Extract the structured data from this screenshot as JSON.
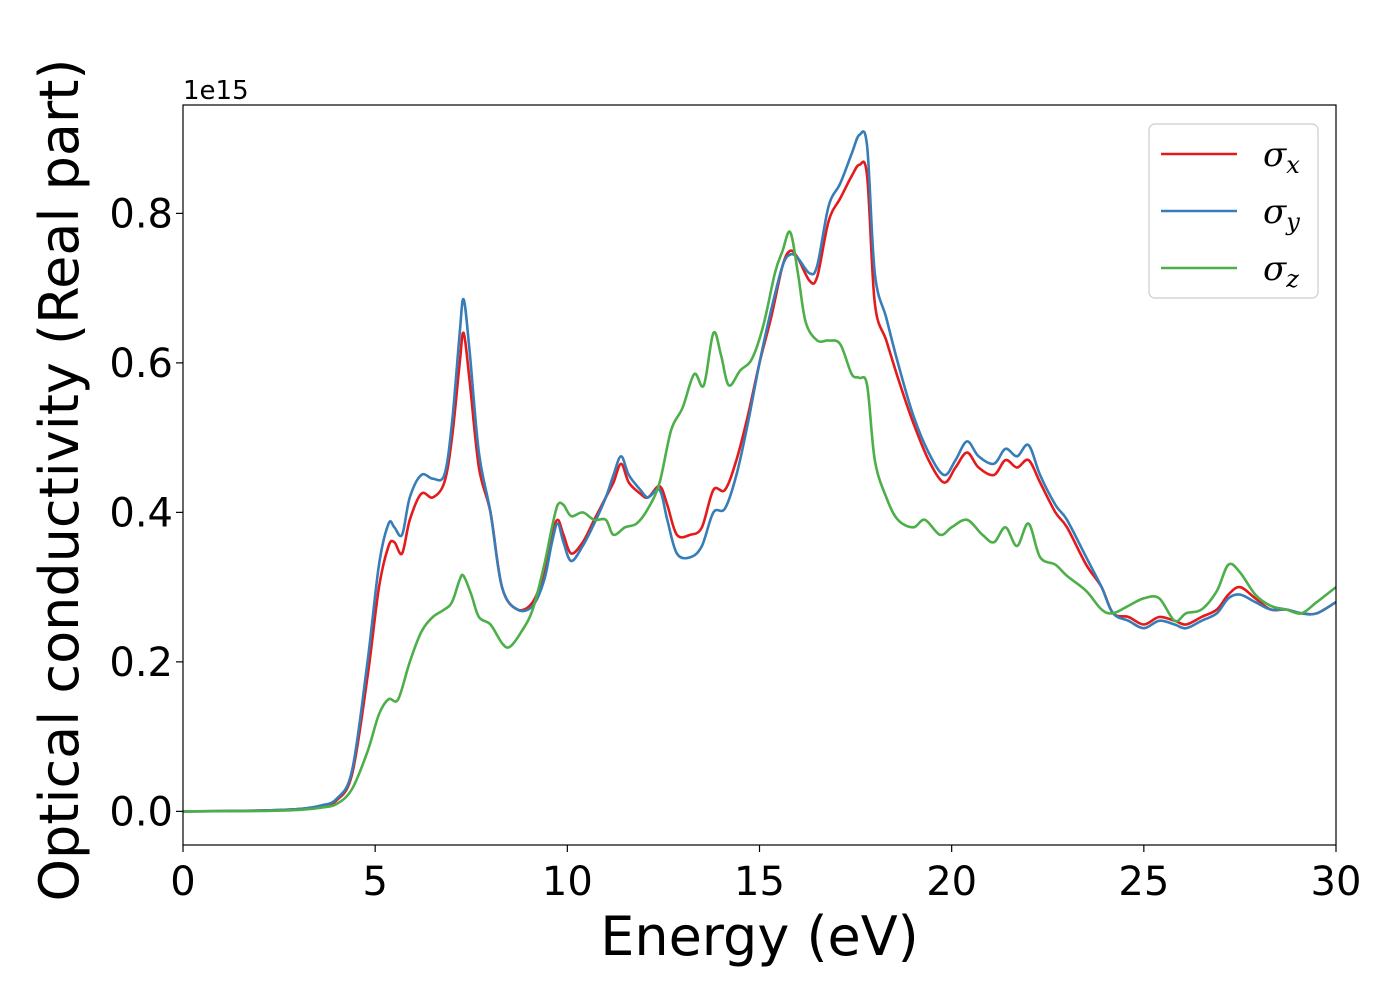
{
  "chart_data": {
    "type": "line",
    "xlabel": "Energy (eV)",
    "ylabel": "Optical conductivity (Real part)",
    "y_offset_label": "1e15",
    "xlim": [
      0,
      30
    ],
    "ylim": [
      -0.045,
      0.945
    ],
    "x_ticks": [
      0,
      5,
      10,
      15,
      20,
      25,
      30
    ],
    "x_tick_labels": [
      "0",
      "5",
      "10",
      "15",
      "20",
      "25",
      "30"
    ],
    "y_ticks": [
      0.0,
      0.2,
      0.4,
      0.6,
      0.8
    ],
    "y_tick_labels": [
      "0.0",
      "0.2",
      "0.4",
      "0.6",
      "0.8"
    ],
    "grid": false,
    "legend_position": "top-right",
    "series": [
      {
        "name": "σx",
        "symbol": "σ",
        "subscript": "x",
        "color": "#e41a1c",
        "points": [
          [
            0,
            0
          ],
          [
            2,
            0.001
          ],
          [
            3,
            0.003
          ],
          [
            3.6,
            0.007
          ],
          [
            4,
            0.015
          ],
          [
            4.4,
            0.05
          ],
          [
            4.8,
            0.18
          ],
          [
            5.1,
            0.3
          ],
          [
            5.35,
            0.355
          ],
          [
            5.5,
            0.36
          ],
          [
            5.7,
            0.345
          ],
          [
            5.9,
            0.39
          ],
          [
            6.2,
            0.425
          ],
          [
            6.5,
            0.42
          ],
          [
            6.8,
            0.44
          ],
          [
            7.0,
            0.5
          ],
          [
            7.2,
            0.6
          ],
          [
            7.3,
            0.64
          ],
          [
            7.45,
            0.58
          ],
          [
            7.7,
            0.46
          ],
          [
            8.0,
            0.4
          ],
          [
            8.3,
            0.3
          ],
          [
            8.7,
            0.27
          ],
          [
            9.1,
            0.28
          ],
          [
            9.4,
            0.32
          ],
          [
            9.6,
            0.37
          ],
          [
            9.75,
            0.39
          ],
          [
            9.9,
            0.37
          ],
          [
            10.1,
            0.345
          ],
          [
            10.4,
            0.36
          ],
          [
            10.7,
            0.39
          ],
          [
            11.0,
            0.42
          ],
          [
            11.2,
            0.44
          ],
          [
            11.4,
            0.465
          ],
          [
            11.6,
            0.44
          ],
          [
            11.9,
            0.425
          ],
          [
            12.1,
            0.42
          ],
          [
            12.4,
            0.435
          ],
          [
            12.6,
            0.41
          ],
          [
            12.85,
            0.37
          ],
          [
            13.2,
            0.37
          ],
          [
            13.5,
            0.38
          ],
          [
            13.8,
            0.43
          ],
          [
            14.1,
            0.43
          ],
          [
            14.4,
            0.47
          ],
          [
            14.7,
            0.53
          ],
          [
            15.0,
            0.6
          ],
          [
            15.3,
            0.66
          ],
          [
            15.6,
            0.73
          ],
          [
            15.8,
            0.75
          ],
          [
            16.0,
            0.74
          ],
          [
            16.3,
            0.71
          ],
          [
            16.5,
            0.715
          ],
          [
            16.8,
            0.79
          ],
          [
            17.1,
            0.82
          ],
          [
            17.4,
            0.85
          ],
          [
            17.6,
            0.865
          ],
          [
            17.8,
            0.85
          ],
          [
            18.0,
            0.68
          ],
          [
            18.3,
            0.63
          ],
          [
            18.6,
            0.58
          ],
          [
            19.0,
            0.52
          ],
          [
            19.4,
            0.47
          ],
          [
            19.8,
            0.44
          ],
          [
            20.1,
            0.46
          ],
          [
            20.4,
            0.48
          ],
          [
            20.7,
            0.46
          ],
          [
            21.1,
            0.45
          ],
          [
            21.4,
            0.47
          ],
          [
            21.7,
            0.46
          ],
          [
            22.0,
            0.47
          ],
          [
            22.3,
            0.44
          ],
          [
            22.7,
            0.4
          ],
          [
            23.0,
            0.38
          ],
          [
            23.5,
            0.33
          ],
          [
            23.9,
            0.3
          ],
          [
            24.2,
            0.265
          ],
          [
            24.6,
            0.26
          ],
          [
            25.0,
            0.25
          ],
          [
            25.4,
            0.26
          ],
          [
            25.8,
            0.255
          ],
          [
            26.1,
            0.25
          ],
          [
            26.5,
            0.26
          ],
          [
            26.9,
            0.27
          ],
          [
            27.2,
            0.29
          ],
          [
            27.5,
            0.3
          ],
          [
            27.9,
            0.285
          ],
          [
            28.3,
            0.27
          ],
          [
            28.7,
            0.27
          ],
          [
            29.1,
            0.265
          ],
          [
            29.5,
            0.265
          ],
          [
            30.0,
            0.28
          ]
        ]
      },
      {
        "name": "σy",
        "symbol": "σ",
        "subscript": "y",
        "color": "#377eb8",
        "points": [
          [
            0,
            0
          ],
          [
            2,
            0.001
          ],
          [
            3,
            0.003
          ],
          [
            3.6,
            0.008
          ],
          [
            4,
            0.017
          ],
          [
            4.4,
            0.055
          ],
          [
            4.8,
            0.2
          ],
          [
            5.1,
            0.33
          ],
          [
            5.35,
            0.385
          ],
          [
            5.5,
            0.38
          ],
          [
            5.7,
            0.37
          ],
          [
            5.9,
            0.42
          ],
          [
            6.2,
            0.45
          ],
          [
            6.5,
            0.445
          ],
          [
            6.8,
            0.45
          ],
          [
            7.0,
            0.52
          ],
          [
            7.2,
            0.64
          ],
          [
            7.3,
            0.685
          ],
          [
            7.45,
            0.62
          ],
          [
            7.7,
            0.48
          ],
          [
            8.0,
            0.4
          ],
          [
            8.3,
            0.3
          ],
          [
            8.7,
            0.27
          ],
          [
            9.1,
            0.275
          ],
          [
            9.4,
            0.31
          ],
          [
            9.6,
            0.36
          ],
          [
            9.75,
            0.385
          ],
          [
            9.9,
            0.36
          ],
          [
            10.1,
            0.335
          ],
          [
            10.4,
            0.355
          ],
          [
            10.7,
            0.385
          ],
          [
            11.0,
            0.42
          ],
          [
            11.2,
            0.45
          ],
          [
            11.4,
            0.475
          ],
          [
            11.6,
            0.45
          ],
          [
            11.9,
            0.43
          ],
          [
            12.1,
            0.42
          ],
          [
            12.4,
            0.43
          ],
          [
            12.6,
            0.39
          ],
          [
            12.85,
            0.345
          ],
          [
            13.2,
            0.34
          ],
          [
            13.5,
            0.355
          ],
          [
            13.8,
            0.4
          ],
          [
            14.1,
            0.405
          ],
          [
            14.4,
            0.45
          ],
          [
            14.7,
            0.52
          ],
          [
            15.0,
            0.6
          ],
          [
            15.3,
            0.67
          ],
          [
            15.6,
            0.73
          ],
          [
            15.8,
            0.745
          ],
          [
            16.0,
            0.74
          ],
          [
            16.3,
            0.72
          ],
          [
            16.5,
            0.73
          ],
          [
            16.8,
            0.81
          ],
          [
            17.1,
            0.84
          ],
          [
            17.4,
            0.88
          ],
          [
            17.6,
            0.905
          ],
          [
            17.8,
            0.89
          ],
          [
            18.0,
            0.72
          ],
          [
            18.3,
            0.66
          ],
          [
            18.6,
            0.6
          ],
          [
            19.0,
            0.53
          ],
          [
            19.4,
            0.48
          ],
          [
            19.8,
            0.45
          ],
          [
            20.1,
            0.47
          ],
          [
            20.4,
            0.495
          ],
          [
            20.7,
            0.475
          ],
          [
            21.1,
            0.465
          ],
          [
            21.4,
            0.485
          ],
          [
            21.7,
            0.475
          ],
          [
            22.0,
            0.49
          ],
          [
            22.3,
            0.45
          ],
          [
            22.7,
            0.41
          ],
          [
            23.0,
            0.39
          ],
          [
            23.5,
            0.34
          ],
          [
            23.9,
            0.3
          ],
          [
            24.2,
            0.265
          ],
          [
            24.6,
            0.255
          ],
          [
            25.0,
            0.245
          ],
          [
            25.4,
            0.255
          ],
          [
            25.8,
            0.25
          ],
          [
            26.1,
            0.245
          ],
          [
            26.5,
            0.255
          ],
          [
            26.9,
            0.265
          ],
          [
            27.2,
            0.285
          ],
          [
            27.5,
            0.29
          ],
          [
            27.9,
            0.28
          ],
          [
            28.3,
            0.27
          ],
          [
            28.7,
            0.27
          ],
          [
            29.1,
            0.265
          ],
          [
            29.5,
            0.265
          ],
          [
            30.0,
            0.28
          ]
        ]
      },
      {
        "name": "σz",
        "symbol": "σ",
        "subscript": "z",
        "color": "#4daf4a",
        "points": [
          [
            0,
            0
          ],
          [
            2,
            0.0005
          ],
          [
            3,
            0.002
          ],
          [
            3.6,
            0.005
          ],
          [
            4,
            0.01
          ],
          [
            4.4,
            0.03
          ],
          [
            4.8,
            0.08
          ],
          [
            5.1,
            0.13
          ],
          [
            5.35,
            0.15
          ],
          [
            5.6,
            0.15
          ],
          [
            5.9,
            0.2
          ],
          [
            6.2,
            0.24
          ],
          [
            6.5,
            0.26
          ],
          [
            6.8,
            0.27
          ],
          [
            7.0,
            0.28
          ],
          [
            7.2,
            0.31
          ],
          [
            7.3,
            0.315
          ],
          [
            7.5,
            0.29
          ],
          [
            7.7,
            0.26
          ],
          [
            8.0,
            0.25
          ],
          [
            8.3,
            0.225
          ],
          [
            8.5,
            0.22
          ],
          [
            8.8,
            0.24
          ],
          [
            9.1,
            0.27
          ],
          [
            9.4,
            0.33
          ],
          [
            9.6,
            0.38
          ],
          [
            9.75,
            0.41
          ],
          [
            9.9,
            0.41
          ],
          [
            10.1,
            0.395
          ],
          [
            10.4,
            0.4
          ],
          [
            10.7,
            0.39
          ],
          [
            11.0,
            0.39
          ],
          [
            11.2,
            0.37
          ],
          [
            11.5,
            0.38
          ],
          [
            11.8,
            0.385
          ],
          [
            12.1,
            0.405
          ],
          [
            12.4,
            0.44
          ],
          [
            12.7,
            0.51
          ],
          [
            13.0,
            0.54
          ],
          [
            13.3,
            0.585
          ],
          [
            13.55,
            0.57
          ],
          [
            13.8,
            0.64
          ],
          [
            14.0,
            0.61
          ],
          [
            14.2,
            0.57
          ],
          [
            14.5,
            0.59
          ],
          [
            14.8,
            0.605
          ],
          [
            15.1,
            0.65
          ],
          [
            15.4,
            0.72
          ],
          [
            15.6,
            0.75
          ],
          [
            15.8,
            0.775
          ],
          [
            16.0,
            0.72
          ],
          [
            16.2,
            0.655
          ],
          [
            16.5,
            0.63
          ],
          [
            16.8,
            0.63
          ],
          [
            17.1,
            0.625
          ],
          [
            17.4,
            0.585
          ],
          [
            17.6,
            0.58
          ],
          [
            17.8,
            0.57
          ],
          [
            18.0,
            0.47
          ],
          [
            18.3,
            0.42
          ],
          [
            18.6,
            0.39
          ],
          [
            19.0,
            0.38
          ],
          [
            19.3,
            0.39
          ],
          [
            19.7,
            0.37
          ],
          [
            20.0,
            0.38
          ],
          [
            20.4,
            0.39
          ],
          [
            20.8,
            0.37
          ],
          [
            21.1,
            0.36
          ],
          [
            21.4,
            0.38
          ],
          [
            21.7,
            0.355
          ],
          [
            22.0,
            0.385
          ],
          [
            22.3,
            0.34
          ],
          [
            22.7,
            0.33
          ],
          [
            23.0,
            0.315
          ],
          [
            23.5,
            0.295
          ],
          [
            23.9,
            0.27
          ],
          [
            24.2,
            0.265
          ],
          [
            24.6,
            0.275
          ],
          [
            25.0,
            0.285
          ],
          [
            25.4,
            0.285
          ],
          [
            25.8,
            0.255
          ],
          [
            26.1,
            0.265
          ],
          [
            26.5,
            0.27
          ],
          [
            26.9,
            0.295
          ],
          [
            27.2,
            0.33
          ],
          [
            27.5,
            0.32
          ],
          [
            27.9,
            0.29
          ],
          [
            28.3,
            0.275
          ],
          [
            28.7,
            0.27
          ],
          [
            29.1,
            0.265
          ],
          [
            29.5,
            0.28
          ],
          [
            30.0,
            0.3
          ]
        ]
      }
    ]
  }
}
